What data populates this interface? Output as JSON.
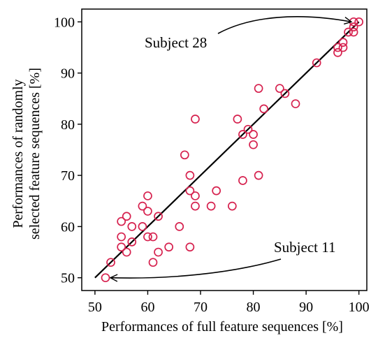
{
  "chart_data": {
    "type": "scatter",
    "xlabel": "Performances of full feature sequences [%]",
    "ylabel_lines": [
      "Performances of randomly",
      "selected feature sequences [%]"
    ],
    "xlim": [
      47.5,
      101.5
    ],
    "ylim": [
      47.5,
      102.5
    ],
    "xticks": [
      50,
      60,
      70,
      80,
      90,
      100
    ],
    "yticks": [
      50,
      60,
      70,
      80,
      90,
      100
    ],
    "grid": false,
    "marker_color": "#d6214e",
    "line_color": "#000000",
    "fit_line": {
      "x": [
        50,
        100
      ],
      "y": [
        50,
        100
      ]
    },
    "points": [
      {
        "x": 52,
        "y": 50
      },
      {
        "x": 53,
        "y": 53
      },
      {
        "x": 55,
        "y": 56
      },
      {
        "x": 55,
        "y": 58
      },
      {
        "x": 55,
        "y": 61
      },
      {
        "x": 56,
        "y": 55
      },
      {
        "x": 56,
        "y": 62
      },
      {
        "x": 57,
        "y": 57
      },
      {
        "x": 57,
        "y": 60
      },
      {
        "x": 59,
        "y": 60
      },
      {
        "x": 59,
        "y": 64
      },
      {
        "x": 60,
        "y": 58
      },
      {
        "x": 60,
        "y": 63
      },
      {
        "x": 60,
        "y": 66
      },
      {
        "x": 61,
        "y": 53
      },
      {
        "x": 61,
        "y": 58
      },
      {
        "x": 62,
        "y": 55
      },
      {
        "x": 62,
        "y": 62
      },
      {
        "x": 64,
        "y": 56
      },
      {
        "x": 66,
        "y": 60
      },
      {
        "x": 67,
        "y": 74
      },
      {
        "x": 68,
        "y": 56
      },
      {
        "x": 68,
        "y": 67
      },
      {
        "x": 68,
        "y": 70
      },
      {
        "x": 69,
        "y": 64
      },
      {
        "x": 69,
        "y": 66
      },
      {
        "x": 69,
        "y": 81
      },
      {
        "x": 72,
        "y": 64
      },
      {
        "x": 73,
        "y": 67
      },
      {
        "x": 76,
        "y": 64
      },
      {
        "x": 77,
        "y": 81
      },
      {
        "x": 78,
        "y": 69
      },
      {
        "x": 78,
        "y": 78
      },
      {
        "x": 79,
        "y": 79
      },
      {
        "x": 80,
        "y": 76
      },
      {
        "x": 80,
        "y": 78
      },
      {
        "x": 81,
        "y": 70
      },
      {
        "x": 81,
        "y": 87
      },
      {
        "x": 82,
        "y": 83
      },
      {
        "x": 85,
        "y": 87
      },
      {
        "x": 86,
        "y": 86
      },
      {
        "x": 88,
        "y": 84
      },
      {
        "x": 92,
        "y": 92
      },
      {
        "x": 96,
        "y": 94
      },
      {
        "x": 96,
        "y": 95
      },
      {
        "x": 97,
        "y": 95
      },
      {
        "x": 97,
        "y": 96
      },
      {
        "x": 98,
        "y": 98
      },
      {
        "x": 99,
        "y": 98
      },
      {
        "x": 99,
        "y": 99
      },
      {
        "x": 99,
        "y": 100
      },
      {
        "x": 100,
        "y": 100
      }
    ],
    "annotations": [
      {
        "text": "Subject 28",
        "target": {
          "x": 99.5,
          "y": 100
        }
      },
      {
        "text": "Subject 11",
        "target": {
          "x": 52,
          "y": 50
        }
      }
    ]
  }
}
